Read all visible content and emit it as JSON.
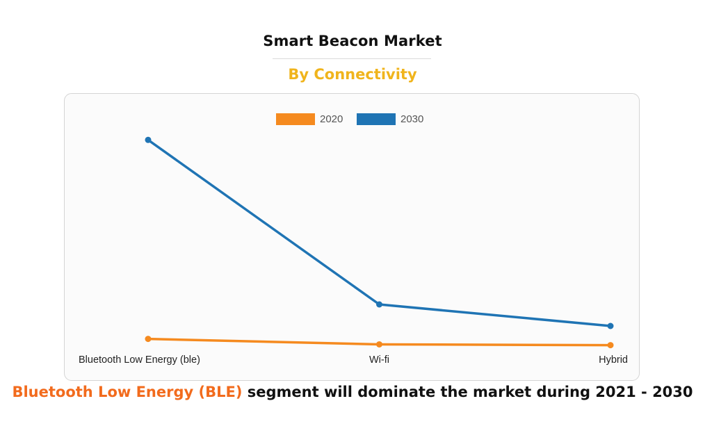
{
  "header": {
    "title": "Smart Beacon Market",
    "subtitle": "By Connectivity"
  },
  "caption": {
    "highlight": "Bluetooth Low Energy (BLE)",
    "rest": " segment will dominate the market during 2021 - 2030"
  },
  "colors": {
    "accent_yellow": "#f0b41c",
    "accent_orange": "#f26b1d",
    "series_2020": "#f58a1f",
    "series_2030": "#1f74b4"
  },
  "chart_data": {
    "type": "line",
    "title": "",
    "xlabel": "",
    "ylabel": "",
    "categories": [
      "Bluetooth Low Energy (ble)",
      "Wi-fi",
      "Hybrid"
    ],
    "series": [
      {
        "name": "2020",
        "color": "#f58a1f",
        "values": [
          2.2,
          0.8,
          0.6
        ]
      },
      {
        "name": "2030",
        "color": "#1f74b4",
        "values": [
          53.0,
          11.0,
          5.5
        ]
      }
    ],
    "ylim": [
      0,
      55
    ],
    "grid": false,
    "legend_position": "top-center"
  }
}
